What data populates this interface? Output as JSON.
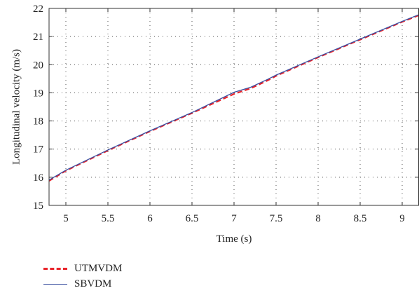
{
  "chart_data": {
    "type": "line",
    "title": "",
    "xlabel": "Time (s)",
    "ylabel": "Longitudinal velocity (m/s)",
    "xlim": [
      4.8,
      9.2
    ],
    "ylim": [
      15,
      22
    ],
    "xticks": [
      5,
      5.5,
      6,
      6.5,
      7,
      7.5,
      8,
      8.5,
      9
    ],
    "xtick_labels": [
      "5",
      "5.5",
      "6",
      "6.5",
      "7",
      "7.5",
      "8",
      "8.5",
      "9"
    ],
    "yticks": [
      15,
      16,
      17,
      18,
      19,
      20,
      21,
      22
    ],
    "ytick_labels": [
      "15",
      "16",
      "17",
      "18",
      "19",
      "20",
      "21",
      "22"
    ],
    "grid": true,
    "legend_position": "below",
    "series": [
      {
        "name": "UTMVDM",
        "color": "#e8232a",
        "style": "dashed",
        "x": [
          4.8,
          5.0,
          5.5,
          6.0,
          6.5,
          7.0,
          7.2,
          7.4,
          7.5,
          8.0,
          8.5,
          9.0,
          9.2
        ],
        "y": [
          15.87,
          16.23,
          16.95,
          17.63,
          18.28,
          18.96,
          19.16,
          19.44,
          19.6,
          20.26,
          20.89,
          21.52,
          21.76
        ]
      },
      {
        "name": "SBVDM",
        "color": "#3a4fa0",
        "style": "solid",
        "x": [
          4.8,
          5.0,
          5.5,
          6.0,
          6.5,
          7.0,
          7.2,
          7.4,
          7.5,
          8.0,
          8.5,
          9.0,
          9.2
        ],
        "y": [
          15.9,
          16.25,
          16.97,
          17.65,
          18.3,
          19.02,
          19.2,
          19.48,
          19.63,
          20.28,
          20.91,
          21.54,
          21.78
        ]
      }
    ]
  }
}
